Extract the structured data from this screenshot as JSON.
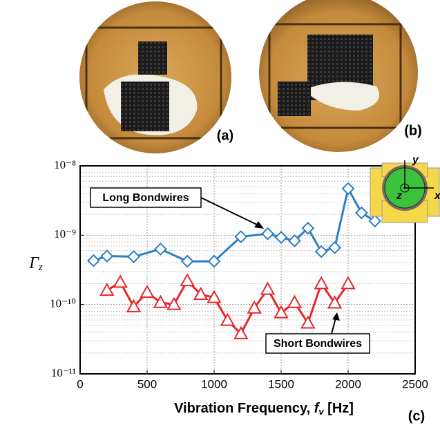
{
  "chart_data": {
    "type": "line",
    "panel_labels": [
      "(a)",
      "(b)",
      "(c)"
    ],
    "xlabel": {
      "text": "Vibration Frequency, ",
      "var": "f",
      "sub": "v",
      "unit": " [Hz]"
    },
    "ylabel": {
      "var": "Γ",
      "sub": "z"
    },
    "xlim": [
      0,
      2500
    ],
    "xticks": [
      0,
      500,
      1000,
      1500,
      2000,
      2500
    ],
    "ylim": [
      1e-11,
      1e-08
    ],
    "yticks": [
      {
        "value": 1e-11,
        "label": "10⁻¹¹"
      },
      {
        "value": 1e-10,
        "label": "10⁻¹⁰"
      },
      {
        "value": 1e-09,
        "label": "10⁻⁹"
      },
      {
        "value": 1e-08,
        "label": "10⁻⁸"
      }
    ],
    "log_y": true,
    "grid": true,
    "series": [
      {
        "name": "Long Bondwires",
        "color": "#2a7ec5",
        "marker": "diamond",
        "x": [
          100,
          200,
          400,
          600,
          800,
          1000,
          1200,
          1400,
          1500,
          1600,
          1700,
          1800,
          1900,
          2000,
          2100,
          2200
        ],
        "values": [
          4.3e-10,
          5e-10,
          4.9e-10,
          6.3e-10,
          4.2e-10,
          4.2e-10,
          9.5e-10,
          1.05e-09,
          9.3e-10,
          8.3e-10,
          1.26e-09,
          5.8e-10,
          6.6e-10,
          4.7e-09,
          2.1e-09,
          1.6e-09
        ]
      },
      {
        "name": "Short Bondwires",
        "color": "#e5262b",
        "marker": "triangle",
        "x": [
          200,
          300,
          400,
          500,
          600,
          700,
          800,
          900,
          1000,
          1100,
          1200,
          1300,
          1400,
          1500,
          1600,
          1700,
          1800,
          1900,
          2000
        ],
        "values": [
          1.6e-10,
          2.1e-10,
          9.3e-11,
          1.5e-10,
          1.07e-10,
          1e-10,
          2.2e-10,
          1.4e-10,
          1.26e-10,
          5.9e-11,
          3.8e-11,
          8.9e-11,
          1.66e-10,
          7.6e-11,
          1.07e-10,
          5.4e-11,
          2e-10,
          1.05e-10,
          2e-10
        ]
      }
    ],
    "inset_labels": [
      "y",
      "x",
      "z"
    ]
  }
}
